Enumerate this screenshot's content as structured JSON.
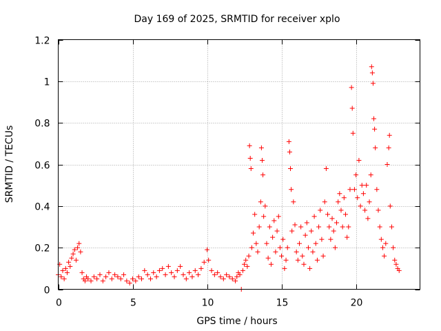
{
  "chart_data": {
    "type": "scatter",
    "title": "Day 169 of 2025, SRMTID for receiver xplo",
    "xlabel": "GPS time / hours",
    "ylabel": "SRMTID / TECUs",
    "xlim": [
      0,
      24.3
    ],
    "ylim": [
      0,
      1.2
    ],
    "x_ticks": [
      0,
      5,
      10,
      15,
      20
    ],
    "x_tick_labels": [
      "0",
      "5",
      "10",
      "15",
      "20"
    ],
    "y_ticks": [
      0,
      0.2,
      0.4,
      0.6,
      0.8,
      1.0,
      1.2
    ],
    "y_tick_labels": [
      "0",
      "0.2",
      "0.4",
      "0.6",
      "0.8",
      "1",
      "1.2"
    ],
    "grid": true,
    "marker": "plus",
    "color": "#ff0000",
    "series": [
      {
        "name": "SRMTID",
        "points": [
          [
            0.0,
            0.07
          ],
          [
            0.1,
            0.12
          ],
          [
            0.2,
            0.06
          ],
          [
            0.3,
            0.09
          ],
          [
            0.4,
            0.05
          ],
          [
            0.5,
            0.1
          ],
          [
            0.6,
            0.08
          ],
          [
            0.7,
            0.13
          ],
          [
            0.8,
            0.11
          ],
          [
            0.9,
            0.15
          ],
          [
            1.0,
            0.17
          ],
          [
            1.1,
            0.19
          ],
          [
            1.2,
            0.14
          ],
          [
            1.3,
            0.2
          ],
          [
            1.4,
            0.22
          ],
          [
            1.5,
            0.18
          ],
          [
            1.6,
            0.08
          ],
          [
            1.7,
            0.05
          ],
          [
            1.8,
            0.04
          ],
          [
            1.9,
            0.06
          ],
          [
            2.0,
            0.05
          ],
          [
            2.2,
            0.04
          ],
          [
            2.4,
            0.06
          ],
          [
            2.6,
            0.05
          ],
          [
            2.8,
            0.07
          ],
          [
            3.0,
            0.04
          ],
          [
            3.2,
            0.06
          ],
          [
            3.4,
            0.08
          ],
          [
            3.6,
            0.05
          ],
          [
            3.8,
            0.07
          ],
          [
            4.0,
            0.06
          ],
          [
            4.2,
            0.05
          ],
          [
            4.4,
            0.07
          ],
          [
            4.6,
            0.04
          ],
          [
            4.8,
            0.03
          ],
          [
            5.0,
            0.05
          ],
          [
            5.2,
            0.04
          ],
          [
            5.4,
            0.06
          ],
          [
            5.6,
            0.05
          ],
          [
            5.8,
            0.09
          ],
          [
            6.0,
            0.07
          ],
          [
            6.2,
            0.05
          ],
          [
            6.4,
            0.08
          ],
          [
            6.6,
            0.06
          ],
          [
            6.8,
            0.09
          ],
          [
            7.0,
            0.1
          ],
          [
            7.2,
            0.07
          ],
          [
            7.4,
            0.11
          ],
          [
            7.6,
            0.08
          ],
          [
            7.8,
            0.06
          ],
          [
            8.0,
            0.09
          ],
          [
            8.2,
            0.11
          ],
          [
            8.4,
            0.07
          ],
          [
            8.6,
            0.05
          ],
          [
            8.8,
            0.08
          ],
          [
            9.0,
            0.06
          ],
          [
            9.2,
            0.09
          ],
          [
            9.4,
            0.07
          ],
          [
            9.6,
            0.1
          ],
          [
            9.8,
            0.13
          ],
          [
            10.0,
            0.19
          ],
          [
            10.1,
            0.14
          ],
          [
            10.3,
            0.09
          ],
          [
            10.5,
            0.07
          ],
          [
            10.7,
            0.08
          ],
          [
            10.9,
            0.06
          ],
          [
            11.1,
            0.05
          ],
          [
            11.3,
            0.07
          ],
          [
            11.5,
            0.06
          ],
          [
            11.7,
            0.05
          ],
          [
            11.9,
            0.04
          ],
          [
            12.0,
            0.06
          ],
          [
            12.1,
            0.08
          ],
          [
            12.2,
            0.07
          ],
          [
            12.3,
            0.0
          ],
          [
            12.4,
            0.09
          ],
          [
            12.5,
            0.12
          ],
          [
            12.6,
            0.14
          ],
          [
            12.7,
            0.11
          ],
          [
            12.8,
            0.16
          ],
          [
            12.85,
            0.69
          ],
          [
            12.9,
            0.63
          ],
          [
            12.95,
            0.58
          ],
          [
            13.0,
            0.2
          ],
          [
            13.1,
            0.27
          ],
          [
            13.2,
            0.36
          ],
          [
            13.3,
            0.22
          ],
          [
            13.4,
            0.18
          ],
          [
            13.5,
            0.3
          ],
          [
            13.6,
            0.42
          ],
          [
            13.65,
            0.68
          ],
          [
            13.7,
            0.62
          ],
          [
            13.75,
            0.55
          ],
          [
            13.8,
            0.35
          ],
          [
            13.9,
            0.4
          ],
          [
            14.0,
            0.22
          ],
          [
            14.1,
            0.15
          ],
          [
            14.2,
            0.3
          ],
          [
            14.3,
            0.12
          ],
          [
            14.4,
            0.25
          ],
          [
            14.5,
            0.33
          ],
          [
            14.6,
            0.18
          ],
          [
            14.7,
            0.28
          ],
          [
            14.8,
            0.35
          ],
          [
            14.9,
            0.2
          ],
          [
            15.0,
            0.16
          ],
          [
            15.1,
            0.24
          ],
          [
            15.2,
            0.1
          ],
          [
            15.3,
            0.14
          ],
          [
            15.4,
            0.2
          ],
          [
            15.5,
            0.71
          ],
          [
            15.55,
            0.66
          ],
          [
            15.6,
            0.58
          ],
          [
            15.65,
            0.48
          ],
          [
            15.7,
            0.28
          ],
          [
            15.8,
            0.42
          ],
          [
            15.9,
            0.31
          ],
          [
            16.0,
            0.18
          ],
          [
            16.1,
            0.14
          ],
          [
            16.2,
            0.22
          ],
          [
            16.3,
            0.3
          ],
          [
            16.4,
            0.16
          ],
          [
            16.5,
            0.12
          ],
          [
            16.6,
            0.26
          ],
          [
            16.7,
            0.32
          ],
          [
            16.8,
            0.2
          ],
          [
            16.9,
            0.1
          ],
          [
            17.0,
            0.28
          ],
          [
            17.1,
            0.18
          ],
          [
            17.2,
            0.35
          ],
          [
            17.3,
            0.22
          ],
          [
            17.4,
            0.14
          ],
          [
            17.5,
            0.3
          ],
          [
            17.6,
            0.38
          ],
          [
            17.7,
            0.24
          ],
          [
            17.8,
            0.16
          ],
          [
            17.9,
            0.42
          ],
          [
            18.0,
            0.58
          ],
          [
            18.1,
            0.36
          ],
          [
            18.2,
            0.3
          ],
          [
            18.3,
            0.24
          ],
          [
            18.4,
            0.34
          ],
          [
            18.5,
            0.28
          ],
          [
            18.6,
            0.2
          ],
          [
            18.7,
            0.32
          ],
          [
            18.8,
            0.42
          ],
          [
            18.9,
            0.46
          ],
          [
            19.0,
            0.38
          ],
          [
            19.1,
            0.3
          ],
          [
            19.2,
            0.44
          ],
          [
            19.3,
            0.36
          ],
          [
            19.4,
            0.25
          ],
          [
            19.5,
            0.3
          ],
          [
            19.6,
            0.48
          ],
          [
            19.7,
            0.97
          ],
          [
            19.75,
            0.87
          ],
          [
            19.8,
            0.75
          ],
          [
            19.9,
            0.48
          ],
          [
            20.0,
            0.55
          ],
          [
            20.1,
            0.44
          ],
          [
            20.2,
            0.62
          ],
          [
            20.3,
            0.4
          ],
          [
            20.4,
            0.5
          ],
          [
            20.5,
            0.46
          ],
          [
            20.6,
            0.38
          ],
          [
            20.7,
            0.5
          ],
          [
            20.8,
            0.34
          ],
          [
            20.9,
            0.42
          ],
          [
            21.0,
            0.55
          ],
          [
            21.05,
            1.07
          ],
          [
            21.1,
            1.04
          ],
          [
            21.15,
            0.99
          ],
          [
            21.2,
            0.82
          ],
          [
            21.25,
            0.77
          ],
          [
            21.3,
            0.68
          ],
          [
            21.4,
            0.48
          ],
          [
            21.5,
            0.38
          ],
          [
            21.6,
            0.3
          ],
          [
            21.7,
            0.24
          ],
          [
            21.8,
            0.2
          ],
          [
            21.9,
            0.16
          ],
          [
            22.0,
            0.22
          ],
          [
            22.1,
            0.6
          ],
          [
            22.2,
            0.68
          ],
          [
            22.25,
            0.74
          ],
          [
            22.3,
            0.4
          ],
          [
            22.4,
            0.3
          ],
          [
            22.5,
            0.2
          ],
          [
            22.6,
            0.14
          ],
          [
            22.7,
            0.12
          ],
          [
            22.8,
            0.1
          ],
          [
            22.9,
            0.09
          ]
        ]
      }
    ]
  }
}
